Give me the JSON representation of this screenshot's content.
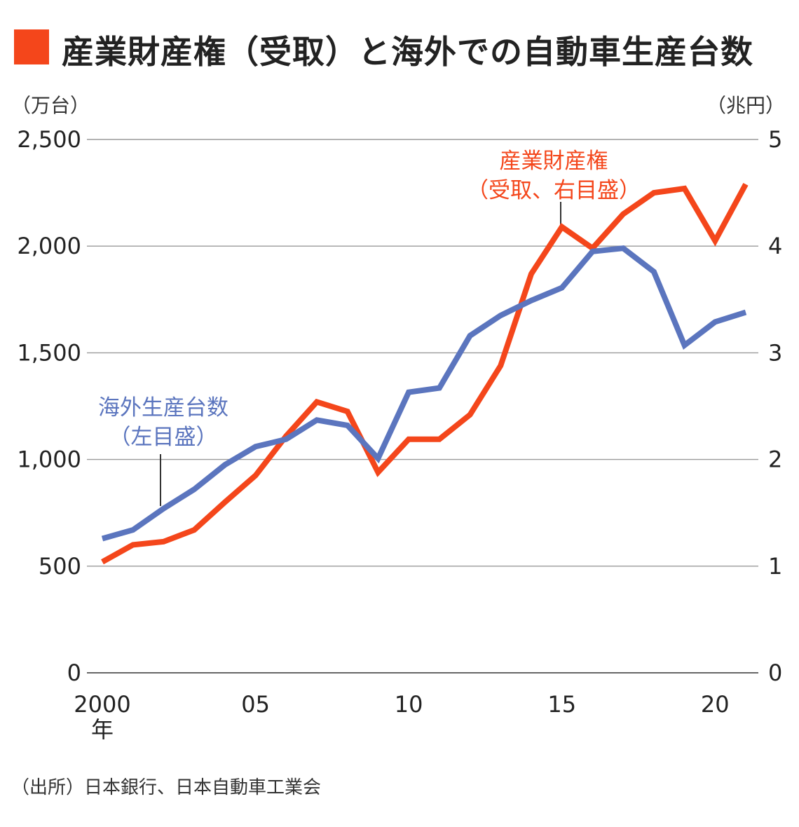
{
  "title": "産業財産権（受取）と海外での自動車生産台数",
  "colors": {
    "accent": "#F4461B",
    "royalty_line": "#F4461B",
    "production_line": "#5B75BE",
    "grid": "#9A9A9A",
    "text": "#222222"
  },
  "source": "（出所）日本銀行、日本自動車工業会",
  "chart_data": {
    "type": "line",
    "y_left_unit": "（万台）",
    "y_right_unit": "（兆円）",
    "y_left_ticks": [
      "0",
      "500",
      "1,000",
      "1,500",
      "2,000",
      "2,500"
    ],
    "y_right_ticks": [
      "0",
      "1",
      "2",
      "3",
      "4",
      "5"
    ],
    "y_left_range": [
      0,
      2500
    ],
    "y_right_range": [
      0,
      5
    ],
    "x_range": [
      2000,
      2021
    ],
    "x_ticks": [
      {
        "value": 2000,
        "label": "2000",
        "sub": "年"
      },
      {
        "value": 2005,
        "label": "05"
      },
      {
        "value": 2010,
        "label": "10"
      },
      {
        "value": 2015,
        "label": "15"
      },
      {
        "value": 2020,
        "label": "20"
      }
    ],
    "grid": true,
    "series": [
      {
        "name": "産業財産権（受取、右目盛）",
        "axis": "right",
        "annotation_lines": [
          "産業財産権",
          "（受取、右目盛）"
        ],
        "x": [
          2000,
          2001,
          2002,
          2003,
          2004,
          2005,
          2006,
          2007,
          2008,
          2009,
          2010,
          2011,
          2012,
          2013,
          2014,
          2015,
          2016,
          2017,
          2018,
          2019,
          2020,
          2021
        ],
        "values": [
          1.04,
          1.2,
          1.23,
          1.34,
          1.6,
          1.85,
          2.22,
          2.54,
          2.45,
          1.88,
          2.19,
          2.19,
          2.42,
          2.88,
          3.74,
          4.18,
          3.98,
          4.3,
          4.5,
          4.54,
          4.05,
          4.58
        ]
      },
      {
        "name": "海外生産台数（左目盛）",
        "axis": "left",
        "annotation_lines": [
          "海外生産台数",
          "（左目盛）"
        ],
        "x": [
          2000,
          2001,
          2002,
          2003,
          2004,
          2005,
          2006,
          2007,
          2008,
          2009,
          2010,
          2011,
          2012,
          2013,
          2014,
          2015,
          2016,
          2017,
          2018,
          2019,
          2020,
          2021
        ],
        "values": [
          629,
          670,
          770,
          860,
          975,
          1060,
          1095,
          1185,
          1160,
          1005,
          1315,
          1335,
          1580,
          1675,
          1745,
          1805,
          1975,
          1990,
          1880,
          1535,
          1645,
          1690
        ]
      }
    ]
  }
}
